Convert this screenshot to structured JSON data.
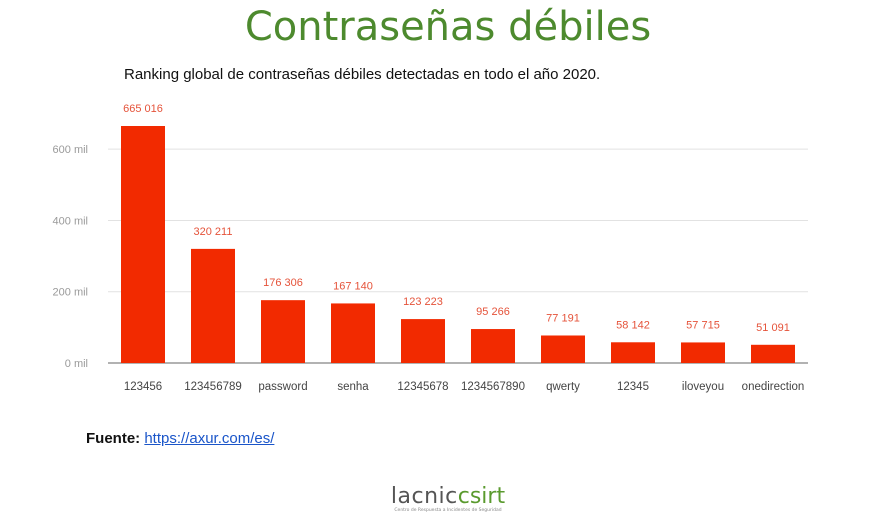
{
  "title": "Contraseñas débiles",
  "chart_data": {
    "type": "bar",
    "title": "Ranking global de contraseñas débiles detectadas en todo el año 2020.",
    "categories": [
      "123456",
      "123456789",
      "password",
      "senha",
      "12345678",
      "1234567890",
      "qwerty",
      "12345",
      "iloveyou",
      "onedirection"
    ],
    "values": [
      665016,
      320211,
      176306,
      167140,
      123223,
      95266,
      77191,
      58142,
      57715,
      51091
    ],
    "value_labels": [
      "665 016",
      "320 211",
      "176 306",
      "167 140",
      "123 223",
      "95 266",
      "77 191",
      "58 142",
      "57 715",
      "51 091"
    ],
    "y_ticks": [
      0,
      200000,
      400000,
      600000
    ],
    "y_tick_labels": [
      "0 mil",
      "200 mil",
      "400 mil",
      "600 mil"
    ],
    "ylim": [
      0,
      665016
    ],
    "grid": true,
    "xlabel": "",
    "ylabel": "",
    "bar_color": "#f22a00",
    "label_color": "#e5533a"
  },
  "source": {
    "label": "Fuente:",
    "link": "https://axur.com/es/"
  },
  "logo": {
    "part1": "lacnic",
    "part2": "csirt",
    "tagline": "Centro de Respuesta a Incidentes de Seguridad"
  }
}
